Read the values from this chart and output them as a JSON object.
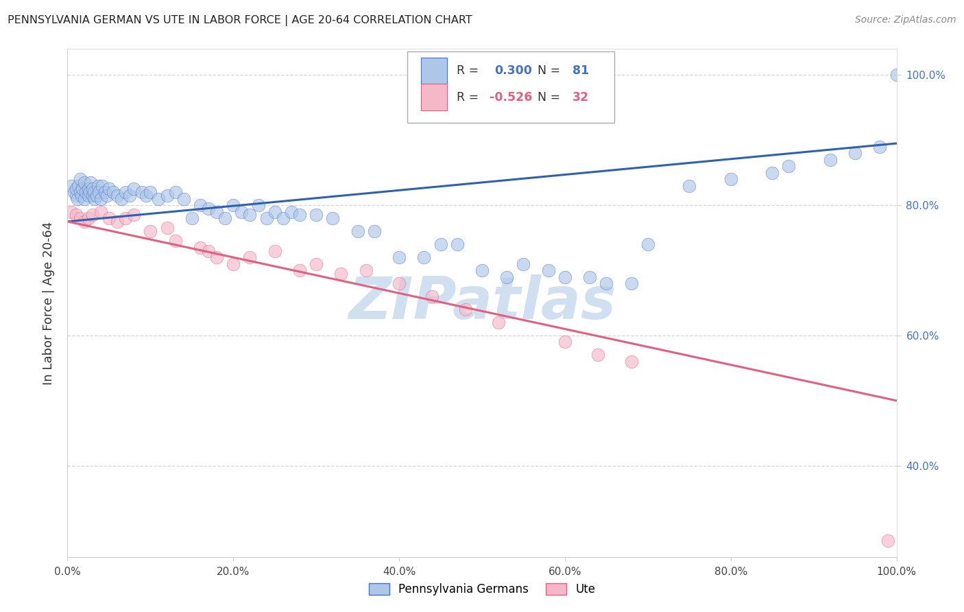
{
  "title": "PENNSYLVANIA GERMAN VS UTE IN LABOR FORCE | AGE 20-64 CORRELATION CHART",
  "source": "Source: ZipAtlas.com",
  "ylabel": "In Labor Force | Age 20-64",
  "blue_R": 0.3,
  "blue_N": 81,
  "pink_R": -0.526,
  "pink_N": 32,
  "blue_color": "#aec6e8",
  "pink_color": "#f4b8c8",
  "blue_edge_color": "#4472c4",
  "pink_edge_color": "#e06080",
  "blue_line_color": "#3060b0",
  "pink_line_color": "#e06080",
  "grid_color": "#cccccc",
  "title_color": "#222222",
  "source_color": "#888888",
  "tick_color": "#4472c4",
  "watermark_color": "#d0e0f0",
  "xlim": [
    0.0,
    1.0
  ],
  "ylim": [
    0.26,
    1.04
  ],
  "xtick_values": [
    0.0,
    0.2,
    0.4,
    0.6,
    0.8,
    1.0
  ],
  "xtick_labels": [
    "0.0%",
    "20.0%",
    "40.0%",
    "60.0%",
    "80.0%",
    "100.0%"
  ],
  "ytick_values": [
    0.4,
    0.6,
    0.8,
    1.0
  ],
  "ytick_labels": [
    "40.0%",
    "60.0%",
    "80.0%",
    "100.0%"
  ],
  "blue_line_start_y": 0.775,
  "blue_line_end_y": 0.895,
  "pink_line_start_y": 0.775,
  "pink_line_end_y": 0.5,
  "blue_scatter_x": [
    0.005,
    0.008,
    0.01,
    0.01,
    0.012,
    0.013,
    0.015,
    0.015,
    0.017,
    0.018,
    0.02,
    0.02,
    0.022,
    0.025,
    0.025,
    0.027,
    0.028,
    0.03,
    0.03,
    0.032,
    0.033,
    0.035,
    0.037,
    0.038,
    0.04,
    0.042,
    0.045,
    0.048,
    0.05,
    0.055,
    0.06,
    0.065,
    0.07,
    0.075,
    0.08,
    0.09,
    0.095,
    0.1,
    0.11,
    0.12,
    0.13,
    0.14,
    0.15,
    0.16,
    0.17,
    0.18,
    0.19,
    0.2,
    0.21,
    0.22,
    0.23,
    0.24,
    0.25,
    0.26,
    0.27,
    0.28,
    0.3,
    0.32,
    0.35,
    0.37,
    0.4,
    0.43,
    0.45,
    0.47,
    0.5,
    0.53,
    0.55,
    0.58,
    0.6,
    0.63,
    0.65,
    0.68,
    0.7,
    0.75,
    0.8,
    0.85,
    0.87,
    0.92,
    0.95,
    0.98,
    1.0
  ],
  "blue_scatter_y": [
    0.83,
    0.82,
    0.815,
    0.825,
    0.81,
    0.83,
    0.84,
    0.82,
    0.815,
    0.825,
    0.81,
    0.835,
    0.82,
    0.815,
    0.825,
    0.82,
    0.835,
    0.815,
    0.825,
    0.82,
    0.81,
    0.815,
    0.83,
    0.82,
    0.81,
    0.83,
    0.82,
    0.815,
    0.825,
    0.82,
    0.815,
    0.81,
    0.82,
    0.815,
    0.825,
    0.82,
    0.815,
    0.82,
    0.81,
    0.815,
    0.82,
    0.81,
    0.78,
    0.8,
    0.795,
    0.79,
    0.78,
    0.8,
    0.79,
    0.785,
    0.8,
    0.78,
    0.79,
    0.78,
    0.79,
    0.785,
    0.785,
    0.78,
    0.76,
    0.76,
    0.72,
    0.72,
    0.74,
    0.74,
    0.7,
    0.69,
    0.71,
    0.7,
    0.69,
    0.69,
    0.68,
    0.68,
    0.74,
    0.83,
    0.84,
    0.85,
    0.86,
    0.87,
    0.88,
    0.89,
    1.0
  ],
  "pink_scatter_x": [
    0.005,
    0.01,
    0.015,
    0.02,
    0.025,
    0.03,
    0.04,
    0.05,
    0.06,
    0.07,
    0.08,
    0.1,
    0.12,
    0.13,
    0.16,
    0.17,
    0.18,
    0.2,
    0.22,
    0.25,
    0.28,
    0.3,
    0.33,
    0.36,
    0.4,
    0.44,
    0.48,
    0.52,
    0.6,
    0.64,
    0.68,
    0.99
  ],
  "pink_scatter_y": [
    0.79,
    0.785,
    0.78,
    0.775,
    0.78,
    0.785,
    0.79,
    0.78,
    0.775,
    0.78,
    0.785,
    0.76,
    0.765,
    0.745,
    0.735,
    0.73,
    0.72,
    0.71,
    0.72,
    0.73,
    0.7,
    0.71,
    0.695,
    0.7,
    0.68,
    0.66,
    0.64,
    0.62,
    0.59,
    0.57,
    0.56,
    0.285
  ],
  "legend_items": [
    {
      "label": "Pennsylvania Germans",
      "color": "#aec6e8",
      "edge": "#4472c4"
    },
    {
      "label": "Ute",
      "color": "#f4b8c8",
      "edge": "#e06080"
    }
  ]
}
